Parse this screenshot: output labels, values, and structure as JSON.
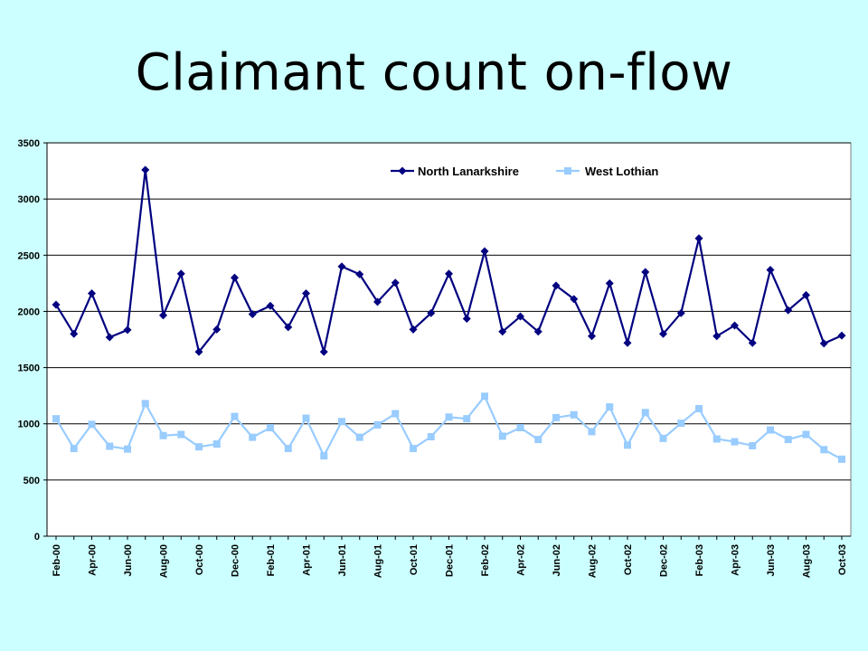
{
  "title": "Claimant count on-flow",
  "chart_data": {
    "type": "line",
    "title": "Claimant count on-flow",
    "xlabel": "",
    "ylabel": "",
    "ylim": [
      0,
      3500
    ],
    "yticks": [
      0,
      500,
      1000,
      1500,
      2000,
      2500,
      3000,
      3500
    ],
    "grid": true,
    "legend": "top-right",
    "categories": [
      "Feb-00",
      "Mar-00",
      "Apr-00",
      "May-00",
      "Jun-00",
      "Jul-00",
      "Aug-00",
      "Sep-00",
      "Oct-00",
      "Nov-00",
      "Dec-00",
      "Jan-01",
      "Feb-01",
      "Mar-01",
      "Apr-01",
      "May-01",
      "Jun-01",
      "Jul-01",
      "Aug-01",
      "Sep-01",
      "Oct-01",
      "Nov-01",
      "Dec-01",
      "Jan-02",
      "Feb-02",
      "Mar-02",
      "Apr-02",
      "May-02",
      "Jun-02",
      "Jul-02",
      "Aug-02",
      "Sep-02",
      "Oct-02",
      "Nov-02",
      "Dec-02",
      "Jan-03",
      "Feb-03",
      "Mar-03",
      "Apr-03",
      "May-03",
      "Jun-03",
      "Jul-03",
      "Aug-03",
      "Sep-03",
      "Oct-03"
    ],
    "tick_labels": [
      "Feb-00",
      "Apr-00",
      "Jun-00",
      "Aug-00",
      "Oct-00",
      "Dec-00",
      "Feb-01",
      "Apr-01",
      "Jun-01",
      "Aug-01",
      "Oct-01",
      "Dec-01",
      "Feb-02",
      "Apr-02",
      "Jun-02",
      "Aug-02",
      "Oct-02",
      "Dec-02",
      "Feb-03",
      "Apr-03",
      "Jun-03",
      "Aug-03",
      "Oct-03"
    ],
    "series": [
      {
        "name": "North Lanarkshire",
        "color": "#000080",
        "marker": "diamond",
        "values": [
          2060,
          1800,
          2160,
          1770,
          1835,
          3260,
          1965,
          2335,
          1640,
          1840,
          2300,
          1975,
          2050,
          1860,
          2160,
          1640,
          2400,
          2330,
          2085,
          2255,
          1840,
          1985,
          2335,
          1935,
          2535,
          1820,
          1955,
          1820,
          2230,
          2110,
          1780,
          2250,
          1720,
          2350,
          1800,
          1985,
          2650,
          1780,
          1875,
          1720,
          2370,
          2010,
          2145,
          1715,
          1785
        ]
      },
      {
        "name": "West Lothian",
        "color": "#99ccff",
        "marker": "square",
        "values": [
          1045,
          780,
          995,
          800,
          775,
          1180,
          895,
          905,
          795,
          820,
          1065,
          880,
          965,
          780,
          1050,
          715,
          1020,
          880,
          990,
          1090,
          780,
          885,
          1060,
          1045,
          1245,
          890,
          965,
          860,
          1055,
          1080,
          930,
          1150,
          810,
          1100,
          870,
          1005,
          1135,
          865,
          840,
          805,
          945,
          860,
          905,
          770,
          685
        ]
      }
    ]
  }
}
